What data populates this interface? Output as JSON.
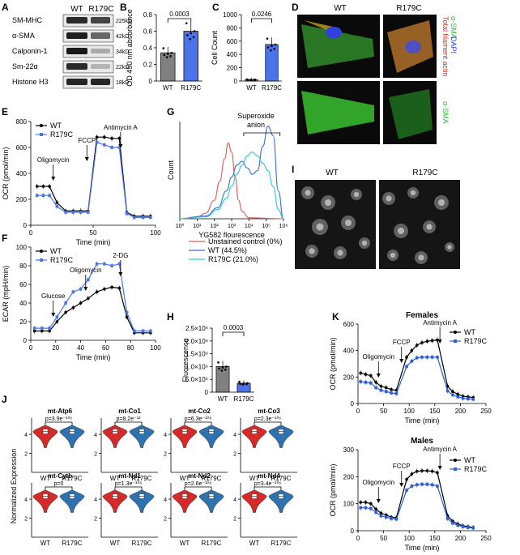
{
  "panels": [
    "A",
    "B",
    "C",
    "D",
    "E",
    "F",
    "G",
    "H",
    "I",
    "J",
    "K"
  ],
  "panel_a": {
    "columns": [
      "WT",
      "R179C"
    ],
    "rows": [
      {
        "label": "SM-MHC",
        "size": "225kD"
      },
      {
        "label": "α-SMA",
        "size": "42kD"
      },
      {
        "label": "Calponin-1",
        "size": "34kD"
      },
      {
        "label": "Sm-22α",
        "size": "22kD"
      },
      {
        "label": "Histone H3",
        "size": "18kD"
      }
    ]
  },
  "panel_d": {
    "col_labels": [
      "WT",
      "R179C"
    ],
    "side_labels": [
      "Total filament actin",
      "α-SMA",
      "DAPI"
    ],
    "bottom_side_label": "α-SMA",
    "colors": {
      "actin": "#d03020",
      "sma": "#30c030",
      "dapi": "#3040e0"
    }
  },
  "panel_i": {
    "col_labels": [
      "WT",
      "R179C"
    ]
  },
  "panel_g_labels": {
    "superoxide": "Superoxide",
    "anion": "anion"
  },
  "panel_j": {
    "ylabel": "Normalized Expression",
    "violins": [
      {
        "gene": "mt-Atp6",
        "p": "p=3.9e⁻¹⁰⁶"
      },
      {
        "gene": "mt-Co1",
        "p": "p=8.2e⁻¹¹"
      },
      {
        "gene": "mt-Co2",
        "p": "p=6.3e⁻¹⁰⁸"
      },
      {
        "gene": "mt-Co3",
        "p": "p=2.3e⁻¹⁰⁶"
      },
      {
        "gene": "mt-Cytb",
        "p": "p=0"
      },
      {
        "gene": "mt-Nd1",
        "p": "p=1.3e⁻¹⁰⁶"
      },
      {
        "gene": "mt-Nd2",
        "p": "p=2.6e⁻¹⁰⁸"
      },
      {
        "gene": "mt-Nd4",
        "p": "p=3.4e⁻¹⁰⁶"
      }
    ],
    "groups": [
      "WT",
      "R179C"
    ],
    "yticks": [
      2,
      4
    ],
    "colors": {
      "WT": "#d42a2a",
      "R179C": "#2e72b0"
    }
  },
  "chart_data": [
    {
      "id": "B",
      "type": "bar",
      "categories": [
        "WT",
        "R179C"
      ],
      "values": [
        0.34,
        0.6
      ],
      "ylim": [
        0,
        0.8
      ],
      "yticks": [
        0.0,
        0.2,
        0.4,
        0.6,
        0.8
      ],
      "ylabel": "OD 450 nm absorbance",
      "pvalue": "0.0003",
      "colors": [
        "#808080",
        "#4a74e8"
      ]
    },
    {
      "id": "C",
      "type": "bar",
      "categories": [
        "WT",
        "R179C"
      ],
      "values": [
        20,
        550
      ],
      "ylim": [
        0,
        1000
      ],
      "yticks": [
        0,
        200,
        400,
        600,
        800,
        1000
      ],
      "ylabel": "Cell Count",
      "pvalue": "0.0246",
      "colors": [
        "#808080",
        "#4a74e8"
      ]
    },
    {
      "id": "E",
      "type": "line",
      "xlabel": "Time (min)",
      "ylabel": "OCR (pmol/min)",
      "xlim": [
        0,
        100
      ],
      "ylim": [
        0,
        800
      ],
      "xticks": [
        0,
        50,
        100
      ],
      "yticks": [
        0,
        200,
        400,
        600,
        800
      ],
      "annotations": [
        {
          "text": "Oligomycin",
          "x": 18
        },
        {
          "text": "FCCP",
          "x": 45
        },
        {
          "text": "Antimycin A",
          "x": 72
        }
      ],
      "series": [
        {
          "name": "WT",
          "color": "#000000",
          "x": [
            5,
            10,
            15,
            21,
            28,
            34,
            40,
            46,
            53,
            59,
            65,
            71,
            77,
            83,
            90,
            96
          ],
          "values": [
            300,
            300,
            300,
            175,
            110,
            110,
            110,
            110,
            680,
            680,
            670,
            670,
            100,
            70,
            70,
            70
          ]
        },
        {
          "name": "R179C",
          "color": "#4a74e8",
          "x": [
            5,
            10,
            15,
            21,
            28,
            34,
            40,
            46,
            53,
            59,
            65,
            71,
            77,
            83,
            90,
            96
          ],
          "values": [
            230,
            230,
            230,
            145,
            100,
            100,
            100,
            100,
            640,
            620,
            600,
            600,
            90,
            60,
            60,
            60
          ]
        }
      ]
    },
    {
      "id": "F",
      "type": "line",
      "xlabel": "Time (min)",
      "ylabel": "ECAR (mpH/min)",
      "xlim": [
        0,
        100
      ],
      "ylim": [
        0,
        100
      ],
      "xticks": [
        0,
        20,
        40,
        60,
        80,
        100
      ],
      "yticks": [
        0,
        20,
        40,
        60,
        80,
        100
      ],
      "annotations": [
        {
          "text": "Glucose",
          "x": 18
        },
        {
          "text": "Oligomycin",
          "x": 44
        },
        {
          "text": "2-DG",
          "x": 72
        }
      ],
      "series": [
        {
          "name": "WT",
          "color": "#000000",
          "x": [
            3,
            9,
            15,
            21,
            28,
            34,
            40,
            46,
            53,
            59,
            65,
            71,
            77,
            83,
            90,
            96
          ],
          "values": [
            10,
            10,
            10,
            20,
            30,
            35,
            40,
            45,
            52,
            55,
            57,
            56,
            25,
            8,
            8,
            8
          ]
        },
        {
          "name": "R179C",
          "color": "#4a74e8",
          "x": [
            3,
            9,
            15,
            21,
            28,
            34,
            40,
            46,
            53,
            59,
            65,
            71,
            77,
            83,
            90,
            96
          ],
          "values": [
            13,
            13,
            13,
            25,
            40,
            52,
            55,
            65,
            82,
            82,
            80,
            82,
            30,
            10,
            10,
            10
          ]
        }
      ]
    },
    {
      "id": "G",
      "type": "line",
      "xlabel": "YG582 flourescence",
      "ylabel": "Count",
      "x_scale": "log",
      "x_tick_labels": [
        "10⁰",
        "10¹",
        "10²",
        "10³",
        "10⁴",
        "10⁵",
        "10⁶"
      ],
      "series": [
        {
          "name": "Unstained control (0%)",
          "color": "#e05a5a",
          "x": [
            0,
            1,
            1.5,
            2,
            2.3,
            2.6,
            2.8,
            3.0,
            3.2,
            3.4,
            3.6,
            4.0,
            6
          ],
          "values": [
            0,
            2,
            6,
            20,
            40,
            65,
            82,
            72,
            45,
            20,
            8,
            1,
            0
          ]
        },
        {
          "name": "WT (44.5%)",
          "color": "#3a6ee0",
          "x": [
            0,
            1.5,
            2.2,
            2.7,
            3.0,
            3.3,
            3.6,
            3.9,
            4.2,
            4.5,
            4.8,
            5.1,
            5.4,
            5.7,
            6
          ],
          "values": [
            0,
            3,
            12,
            30,
            45,
            58,
            62,
            55,
            48,
            52,
            78,
            100,
            90,
            30,
            0
          ]
        },
        {
          "name": "R179C (21.0%)",
          "color": "#30c8d8",
          "x": [
            0,
            1.5,
            2.2,
            2.7,
            3.0,
            3.3,
            3.6,
            3.9,
            4.2,
            4.5,
            4.8,
            5.1,
            5.4,
            5.7,
            6
          ],
          "values": [
            0,
            2,
            10,
            22,
            35,
            48,
            58,
            68,
            72,
            68,
            60,
            52,
            35,
            10,
            0
          ]
        }
      ]
    },
    {
      "id": "H",
      "type": "bar",
      "categories": [
        "WT",
        "R179C"
      ],
      "values": [
        1000000,
        350000
      ],
      "ylim": [
        0,
        2500000
      ],
      "ytick_labels": [
        "0",
        "5.0×10⁵",
        "1.0×10⁶",
        "1.5×10⁶",
        "2.0×10⁶",
        "2.5×10⁶"
      ],
      "ylabel": "Fluorescence",
      "pvalue": "0.0003",
      "colors": [
        "#808080",
        "#4a74e8"
      ]
    },
    {
      "id": "K-females",
      "type": "line",
      "title": "Females",
      "xlabel": "Time (min)",
      "ylabel": "OCR (pmol/min)",
      "xlim": [
        0,
        250
      ],
      "ylim": [
        0,
        600
      ],
      "xticks": [
        0,
        50,
        100,
        150,
        200,
        250
      ],
      "yticks": [
        0,
        200,
        400,
        600
      ],
      "annotations": [
        {
          "text": "Oligomycin",
          "x": 40
        },
        {
          "text": "FCCP",
          "x": 85
        },
        {
          "text": "Antimycin A",
          "x": 160
        }
      ],
      "series": [
        {
          "name": "WT",
          "color": "#000000",
          "x": [
            5,
            15,
            25,
            35,
            45,
            55,
            65,
            75,
            95,
            105,
            115,
            125,
            135,
            145,
            155,
            175,
            185,
            195,
            205,
            215,
            225
          ],
          "values": [
            230,
            220,
            210,
            160,
            130,
            120,
            105,
            100,
            350,
            400,
            440,
            460,
            470,
            475,
            480,
            130,
            90,
            70,
            55,
            50,
            45
          ]
        },
        {
          "name": "R179C",
          "color": "#2e5fd8",
          "x": [
            5,
            15,
            25,
            35,
            45,
            55,
            65,
            75,
            95,
            105,
            115,
            125,
            135,
            145,
            155,
            175,
            185,
            195,
            205,
            215,
            225
          ],
          "values": [
            165,
            160,
            155,
            120,
            100,
            90,
            80,
            75,
            280,
            320,
            345,
            350,
            350,
            350,
            350,
            95,
            65,
            50,
            40,
            35,
            32
          ]
        }
      ]
    },
    {
      "id": "K-males",
      "type": "line",
      "title": "Males",
      "xlabel": "Time (min)",
      "ylabel": "OCR (pmol/min)",
      "xlim": [
        0,
        250
      ],
      "ylim": [
        0,
        300
      ],
      "xticks": [
        0,
        50,
        100,
        150,
        200,
        250
      ],
      "yticks": [
        0,
        100,
        200,
        300
      ],
      "annotations": [
        {
          "text": "Oligomycin",
          "x": 40
        },
        {
          "text": "FCCP",
          "x": 85
        },
        {
          "text": "Antimycin A",
          "x": 160
        }
      ],
      "series": [
        {
          "name": "WT",
          "color": "#000000",
          "x": [
            5,
            15,
            25,
            35,
            45,
            55,
            65,
            75,
            95,
            105,
            115,
            125,
            135,
            145,
            155,
            175,
            185,
            195,
            205,
            215,
            225
          ],
          "values": [
            105,
            105,
            100,
            80,
            65,
            58,
            50,
            48,
            190,
            210,
            220,
            222,
            222,
            220,
            215,
            55,
            35,
            25,
            18,
            15,
            12
          ]
        },
        {
          "name": "R179C",
          "color": "#2e5fd8",
          "x": [
            5,
            15,
            25,
            35,
            45,
            55,
            65,
            75,
            95,
            105,
            115,
            125,
            135,
            145,
            155,
            175,
            185,
            195,
            205,
            215,
            225
          ],
          "values": [
            85,
            85,
            82,
            68,
            55,
            50,
            45,
            43,
            150,
            165,
            170,
            172,
            172,
            170,
            165,
            45,
            28,
            20,
            15,
            12,
            10
          ]
        }
      ]
    }
  ]
}
